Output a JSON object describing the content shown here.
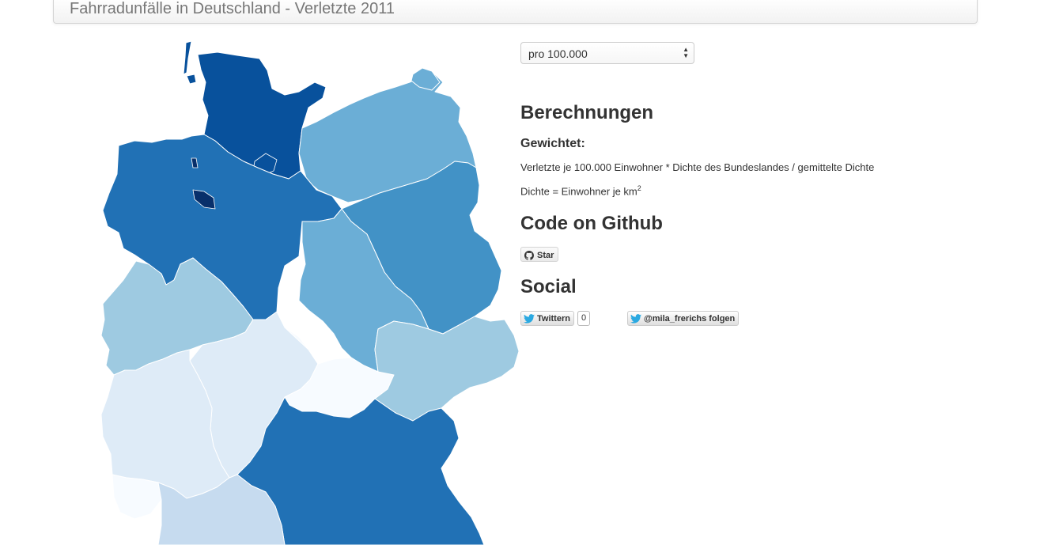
{
  "header": {
    "title": "Fahrradunfälle in Deutschland - Verletzte 2011"
  },
  "controls": {
    "select_value": "pro 100.000",
    "select_arrows": "▲▼"
  },
  "sections": {
    "berechnungen": "Berechnungen",
    "gewichtet": "Gewichtet:",
    "formula": "Verletzte je 100.000 Einwohner * Dichte des Bundeslandes / gemittelte Dichte",
    "dichte_prefix": "Dichte = Einwohner je km",
    "dichte_sup": "2",
    "code_heading": "Code on Github",
    "social_heading": "Social"
  },
  "buttons": {
    "github_star": "Star",
    "twitter_share": "Twittern",
    "twitter_count": "0",
    "twitter_follow": "@mila_frerichs folgen"
  },
  "icons": {
    "github": "github-octocat-icon",
    "twitter": "twitter-bird-icon"
  },
  "map": {
    "colors": {
      "darkest": "#08306b",
      "dark": "#08519c",
      "medium_dark": "#2171b5",
      "medium": "#4292c6",
      "medium_light": "#6baed6",
      "light": "#9ecae1",
      "lighter": "#c6dbef",
      "lightest": "#deebf7",
      "palest": "#f7fbff"
    }
  }
}
